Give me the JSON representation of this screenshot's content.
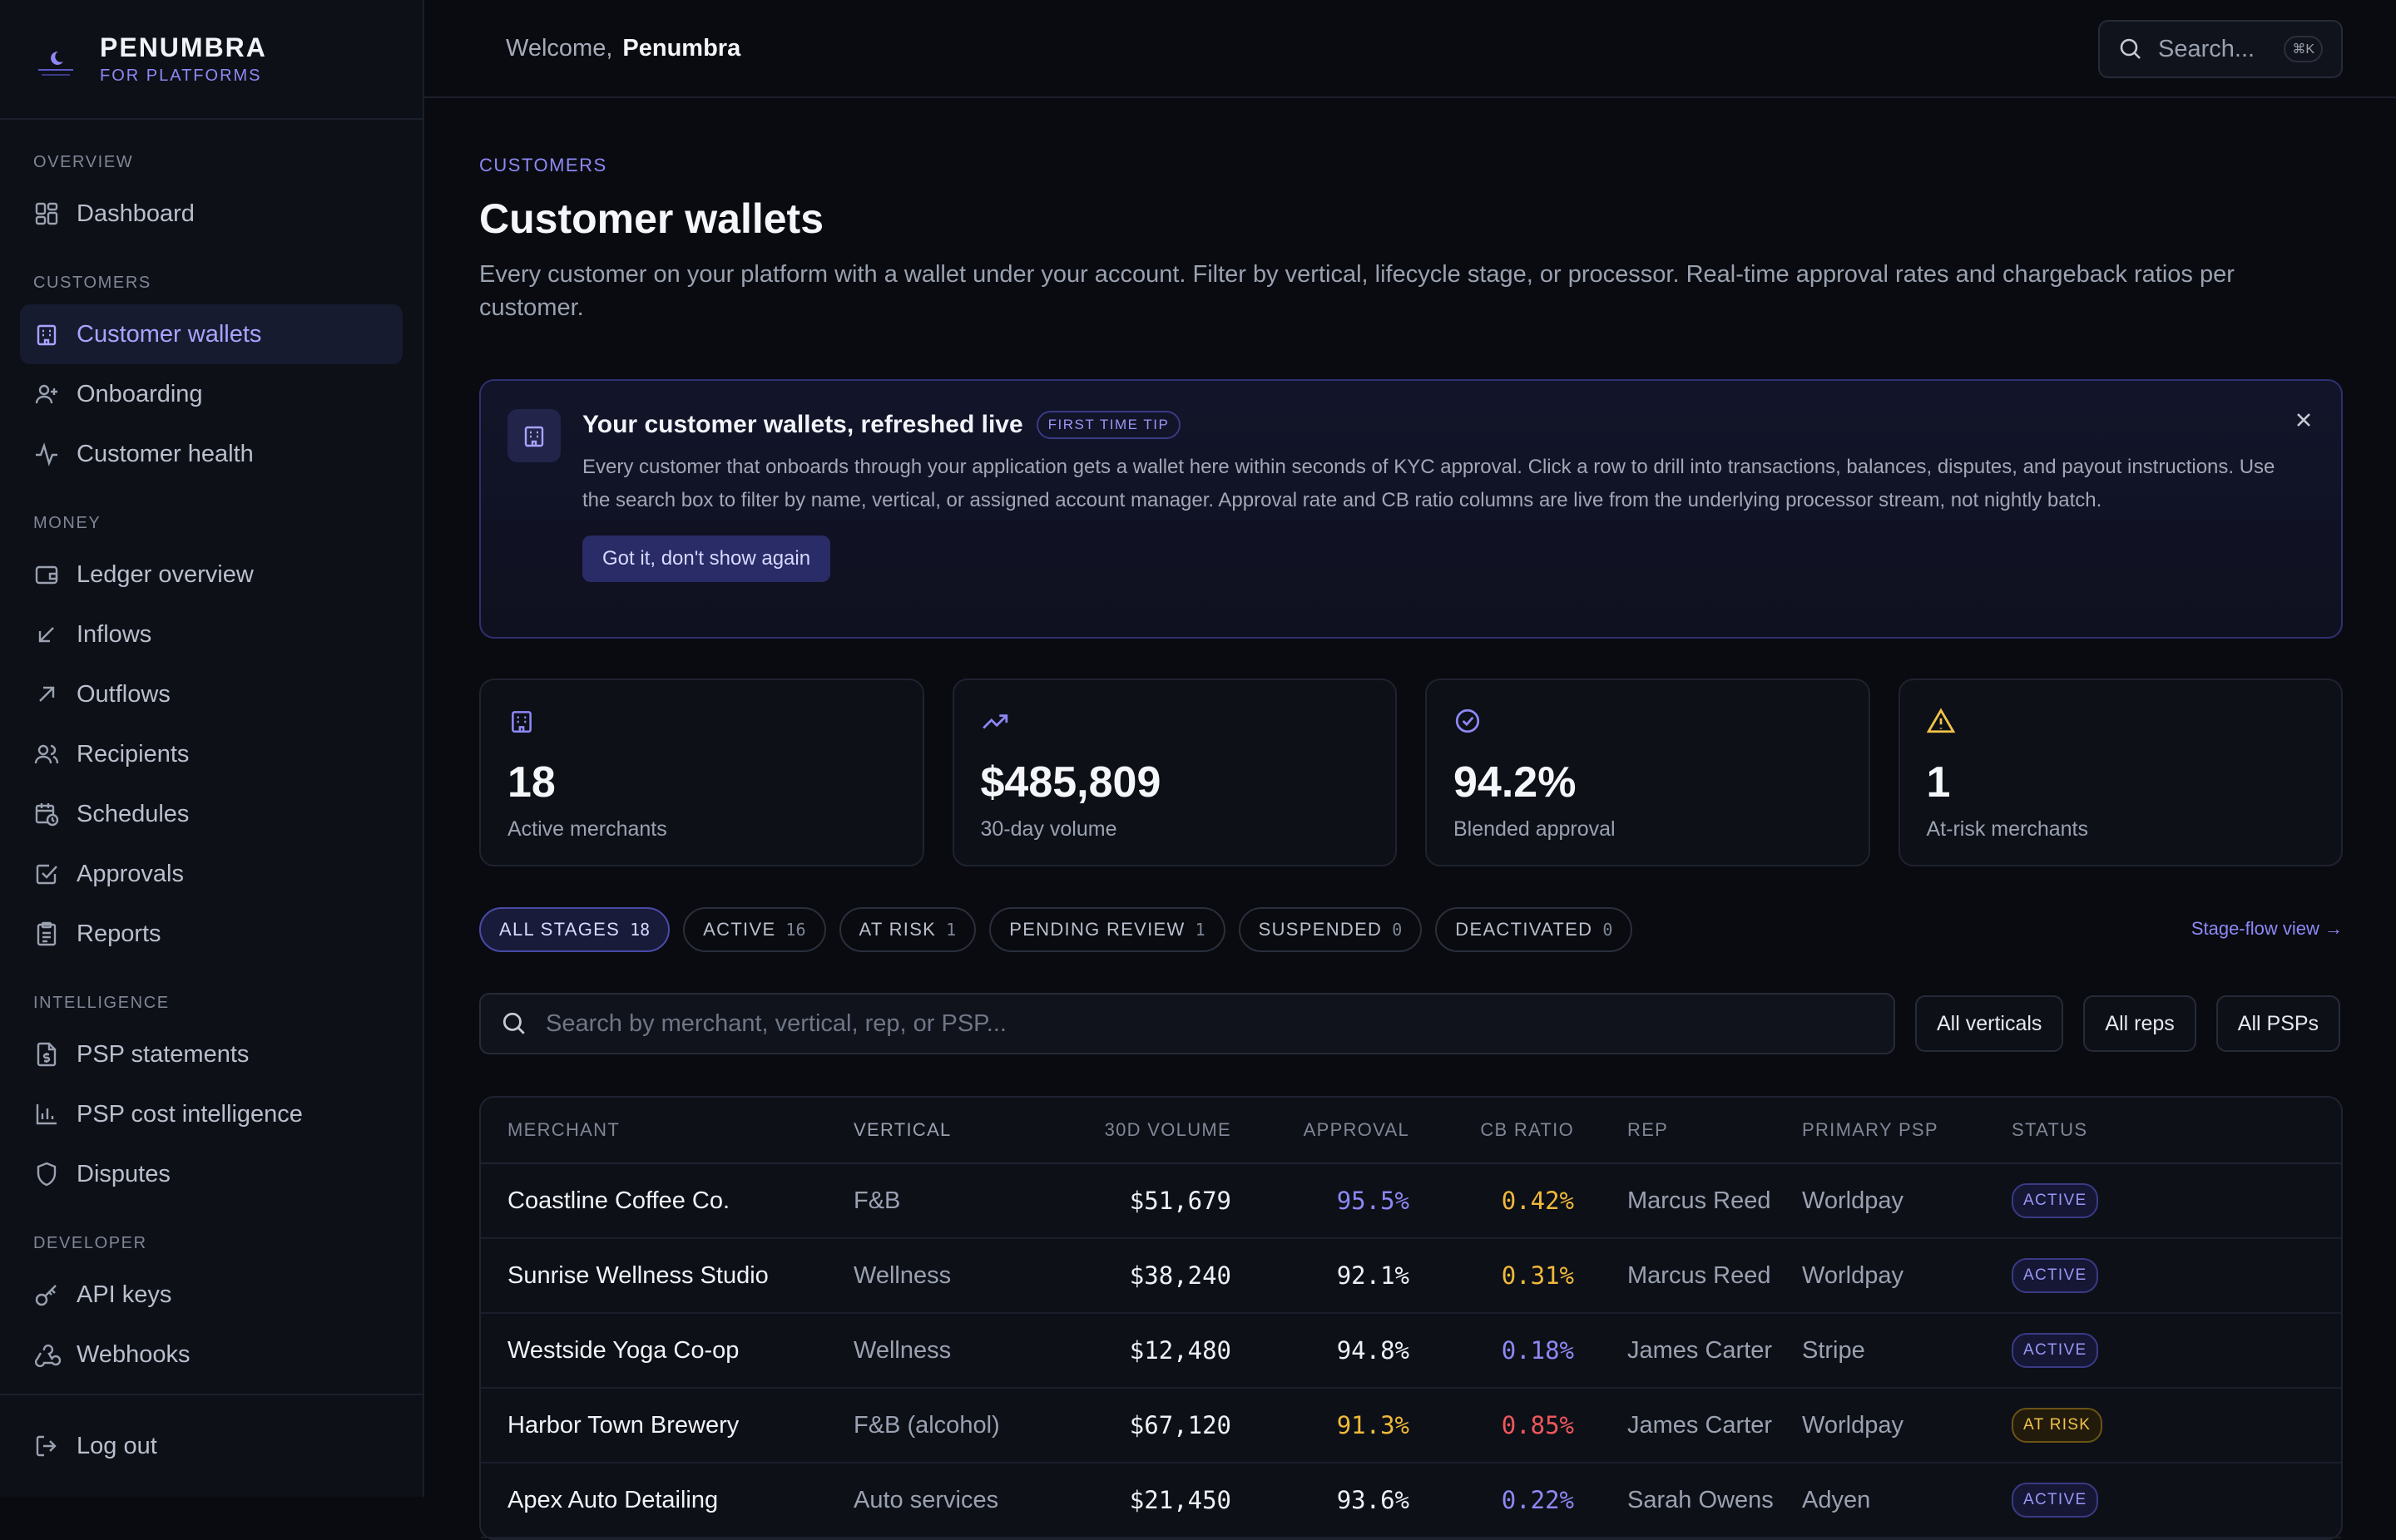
{
  "brand": {
    "name": "PENUMBRA",
    "subtitle": "FOR PLATFORMS"
  },
  "topbar": {
    "welcome_prefix": "Welcome,",
    "welcome_name": "Penumbra",
    "search_placeholder": "Search...",
    "search_shortcut": "⌘K"
  },
  "sidebar": {
    "sections": [
      {
        "label": "OVERVIEW",
        "items": [
          {
            "label": "Dashboard",
            "icon": "dashboard-icon"
          }
        ]
      },
      {
        "label": "CUSTOMERS",
        "items": [
          {
            "label": "Customer wallets",
            "icon": "building-icon",
            "active": true
          },
          {
            "label": "Onboarding",
            "icon": "user-plus-icon"
          },
          {
            "label": "Customer health",
            "icon": "activity-icon"
          }
        ]
      },
      {
        "label": "MONEY",
        "items": [
          {
            "label": "Ledger overview",
            "icon": "wallet-icon"
          },
          {
            "label": "Inflows",
            "icon": "arrow-down-left-icon"
          },
          {
            "label": "Outflows",
            "icon": "arrow-up-right-icon"
          },
          {
            "label": "Recipients",
            "icon": "users-icon"
          },
          {
            "label": "Schedules",
            "icon": "calendar-clock-icon"
          },
          {
            "label": "Approvals",
            "icon": "check-square-icon"
          },
          {
            "label": "Reports",
            "icon": "clipboard-icon"
          }
        ]
      },
      {
        "label": "INTELLIGENCE",
        "items": [
          {
            "label": "PSP statements",
            "icon": "file-dollar-icon"
          },
          {
            "label": "PSP cost intelligence",
            "icon": "bar-chart-icon"
          },
          {
            "label": "Disputes",
            "icon": "shield-icon"
          }
        ]
      },
      {
        "label": "DEVELOPER",
        "items": [
          {
            "label": "API keys",
            "icon": "key-icon"
          },
          {
            "label": "Webhooks",
            "icon": "webhook-icon"
          }
        ]
      }
    ],
    "logout_label": "Log out"
  },
  "page": {
    "crumb": "CUSTOMERS",
    "title": "Customer wallets",
    "description": "Every customer on your platform with a wallet under your account. Filter by vertical, lifecycle stage, or processor. Real-time approval rates and chargeback ratios per customer."
  },
  "tip": {
    "title": "Your customer wallets, refreshed live",
    "badge": "FIRST TIME TIP",
    "text": "Every customer that onboards through your application gets a wallet here within seconds of KYC approval. Click a row to drill into transactions, balances, disputes, and payout instructions. Use the search box to filter by name, vertical, or assigned account manager. Approval rate and CB ratio columns are live from the underlying processor stream, not nightly batch.",
    "button": "Got it, don't show again"
  },
  "stats": [
    {
      "value": "18",
      "label": "Active merchants",
      "icon": "building-icon",
      "color": "#8e88f5"
    },
    {
      "value": "$485,809",
      "label": "30-day volume",
      "icon": "trending-up-icon",
      "color": "#8e88f5"
    },
    {
      "value": "94.2%",
      "label": "Blended approval",
      "icon": "check-circle-icon",
      "color": "#8e88f5"
    },
    {
      "value": "1",
      "label": "At-risk merchants",
      "icon": "warning-icon",
      "color": "#f3c24b"
    }
  ],
  "filters": {
    "stages": [
      {
        "label": "ALL STAGES",
        "count": "18",
        "active": true
      },
      {
        "label": "ACTIVE",
        "count": "16"
      },
      {
        "label": "AT RISK",
        "count": "1"
      },
      {
        "label": "PENDING REVIEW",
        "count": "1"
      },
      {
        "label": "SUSPENDED",
        "count": "0"
      },
      {
        "label": "DEACTIVATED",
        "count": "0"
      }
    ],
    "stage_flow_link": "Stage-flow view →",
    "search_placeholder": "Search by merchant, vertical, rep, or PSP...",
    "dropdowns": [
      "All verticals",
      "All reps",
      "All PSPs"
    ]
  },
  "table": {
    "headers": {
      "merchant": "MERCHANT",
      "vertical": "VERTICAL",
      "volume": "30D VOLUME",
      "approval": "APPROVAL",
      "cb": "CB RATIO",
      "rep": "REP",
      "psp": "PRIMARY PSP",
      "status": "STATUS"
    },
    "rows": [
      {
        "merchant": "Coastline Coffee Co.",
        "vertical": "F&B",
        "volume": "$51,679",
        "approval": "95.5%",
        "approval_tone": "indigo",
        "cb": "0.42%",
        "cb_tone": "amber",
        "rep": "Marcus Reed",
        "psp": "Worldpay",
        "status": "ACTIVE",
        "status_tone": "active"
      },
      {
        "merchant": "Sunrise Wellness Studio",
        "vertical": "Wellness",
        "volume": "$38,240",
        "approval": "92.1%",
        "approval_tone": "white",
        "cb": "0.31%",
        "cb_tone": "amber",
        "rep": "Marcus Reed",
        "psp": "Worldpay",
        "status": "ACTIVE",
        "status_tone": "active"
      },
      {
        "merchant": "Westside Yoga Co-op",
        "vertical": "Wellness",
        "volume": "$12,480",
        "approval": "94.8%",
        "approval_tone": "white",
        "cb": "0.18%",
        "cb_tone": "indigo",
        "rep": "James Carter",
        "psp": "Stripe",
        "status": "ACTIVE",
        "status_tone": "active"
      },
      {
        "merchant": "Harbor Town Brewery",
        "vertical": "F&B (alcohol)",
        "volume": "$67,120",
        "approval": "91.3%",
        "approval_tone": "amber",
        "cb": "0.85%",
        "cb_tone": "red",
        "rep": "James Carter",
        "psp": "Worldpay",
        "status": "AT RISK",
        "status_tone": "risk"
      },
      {
        "merchant": "Apex Auto Detailing",
        "vertical": "Auto services",
        "volume": "$21,450",
        "approval": "93.6%",
        "approval_tone": "white",
        "cb": "0.22%",
        "cb_tone": "indigo",
        "rep": "Sarah Owens",
        "psp": "Adyen",
        "status": "ACTIVE",
        "status_tone": "active"
      }
    ]
  }
}
